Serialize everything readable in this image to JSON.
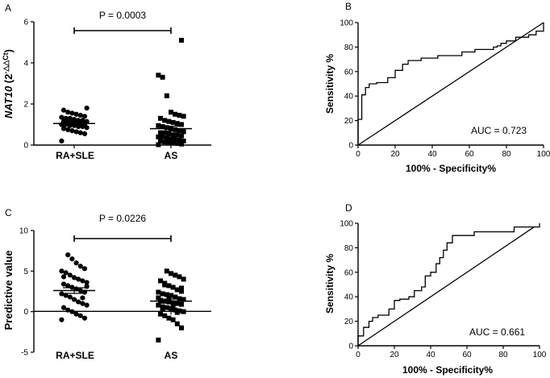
{
  "chart_data": [
    {
      "panel": "A",
      "type": "scatter",
      "ylabel_italic": "NAT10",
      "ylabel_rest": " (2",
      "ylabel_sup": "-△△Ct",
      "ylabel_close": ")",
      "categories": [
        "RA+SLE",
        "AS"
      ],
      "ylim": [
        0,
        6
      ],
      "yticks": [
        0,
        2,
        4,
        6
      ],
      "comparison_label": "P = 0.0003",
      "groups": [
        {
          "name": "RA+SLE",
          "marker": "circle",
          "mean": 1.05,
          "sem": 0.06,
          "values": [
            0.2,
            0.55,
            0.6,
            0.65,
            0.7,
            0.75,
            0.8,
            0.85,
            0.9,
            0.9,
            0.95,
            0.95,
            1.0,
            1.0,
            1.0,
            1.05,
            1.05,
            1.1,
            1.1,
            1.15,
            1.15,
            1.2,
            1.2,
            1.25,
            1.3,
            1.3,
            1.35,
            1.4,
            1.45,
            1.5,
            1.55,
            1.6,
            1.7,
            1.8
          ]
        },
        {
          "name": "AS",
          "marker": "square",
          "mean": 0.8,
          "sem": 0.12,
          "values": [
            0.02,
            0.05,
            0.08,
            0.1,
            0.12,
            0.15,
            0.18,
            0.2,
            0.25,
            0.3,
            0.3,
            0.35,
            0.4,
            0.4,
            0.45,
            0.5,
            0.5,
            0.55,
            0.6,
            0.6,
            0.65,
            0.7,
            0.75,
            0.8,
            0.85,
            0.9,
            0.95,
            1.0,
            1.05,
            1.1,
            1.15,
            1.2,
            1.3,
            1.4,
            1.45,
            1.5,
            1.6,
            2.4,
            3.3,
            3.4,
            5.1
          ]
        }
      ]
    },
    {
      "panel": "B",
      "type": "line",
      "subtype": "roc",
      "xlabel": "100% - Specificity%",
      "ylabel": "Sensitivity %",
      "xlim": [
        0,
        100
      ],
      "ylim": [
        0,
        100
      ],
      "xticks": [
        0,
        20,
        40,
        60,
        80,
        100
      ],
      "yticks": [
        0,
        20,
        40,
        60,
        80,
        100
      ],
      "annotation": "AUC = 0.723",
      "series": [
        {
          "name": "ROC",
          "x": [
            0,
            0,
            2,
            2,
            4,
            4,
            6,
            6,
            10,
            10,
            16,
            16,
            20,
            20,
            24,
            24,
            27,
            27,
            34,
            34,
            43,
            43,
            56,
            56,
            63,
            63,
            73,
            73,
            75,
            75,
            77,
            77,
            80,
            80,
            85,
            85,
            92,
            92,
            96,
            96,
            100,
            100
          ],
          "y": [
            0,
            21,
            21,
            41,
            41,
            47,
            47,
            50,
            50,
            51,
            51,
            55,
            55,
            61,
            61,
            66,
            66,
            69,
            69,
            71,
            71,
            73,
            73,
            76,
            76,
            78,
            78,
            80,
            80,
            81,
            81,
            83,
            83,
            85,
            85,
            88,
            88,
            90,
            90,
            93,
            93,
            100
          ]
        },
        {
          "name": "Reference",
          "x": [
            0,
            100
          ],
          "y": [
            0,
            100
          ]
        }
      ]
    },
    {
      "panel": "C",
      "type": "scatter",
      "ylabel": "Predictive value",
      "categories": [
        "RA+SLE",
        "AS"
      ],
      "ylim": [
        -5,
        10
      ],
      "yticks": [
        -5,
        0,
        5,
        10
      ],
      "comparison_label": "P = 0.0226",
      "groups": [
        {
          "name": "RA+SLE",
          "marker": "circle",
          "mean": 2.6,
          "sem": 0.35,
          "values": [
            -1.0,
            -0.8,
            -0.5,
            -0.3,
            0.0,
            0.2,
            0.5,
            0.8,
            1.0,
            1.2,
            1.5,
            1.8,
            2.0,
            2.2,
            2.4,
            2.6,
            2.8,
            3.0,
            3.2,
            3.4,
            3.6,
            3.8,
            4.0,
            4.2,
            4.5,
            4.8,
            5.0,
            5.3,
            5.6,
            6.0,
            6.5,
            7.0,
            4.3,
            3.1,
            1.7
          ]
        },
        {
          "name": "AS",
          "marker": "square",
          "mean": 1.3,
          "sem": 0.25,
          "values": [
            -3.5,
            -2.0,
            -1.5,
            -1.0,
            -0.8,
            -0.5,
            -0.3,
            0.0,
            0.1,
            0.2,
            0.4,
            0.5,
            0.6,
            0.8,
            0.9,
            1.0,
            1.1,
            1.2,
            1.3,
            1.4,
            1.5,
            1.6,
            1.8,
            2.0,
            2.1,
            2.2,
            2.4,
            2.5,
            2.7,
            3.0,
            3.2,
            3.5,
            3.8,
            4.0,
            4.3,
            4.5,
            4.7,
            5.0,
            0.3,
            1.7,
            2.9,
            -0.1,
            0.7,
            1.9,
            3.3
          ]
        }
      ]
    },
    {
      "panel": "D",
      "type": "line",
      "subtype": "roc",
      "xlabel": "100% - Specificity%",
      "ylabel": "Sensitivity %",
      "xlim": [
        0,
        100
      ],
      "ylim": [
        0,
        100
      ],
      "xticks": [
        0,
        20,
        40,
        60,
        80,
        100
      ],
      "yticks": [
        0,
        20,
        40,
        60,
        80,
        100
      ],
      "annotation": "AUC = 0.661",
      "series": [
        {
          "name": "ROC",
          "x": [
            0,
            0,
            3,
            3,
            6,
            6,
            8,
            8,
            11,
            11,
            17,
            17,
            20,
            20,
            23,
            23,
            28,
            28,
            31,
            31,
            35,
            35,
            37,
            37,
            40,
            40,
            43,
            43,
            45,
            45,
            47,
            47,
            49,
            49,
            52,
            52,
            64,
            64,
            86,
            86,
            100,
            100
          ],
          "y": [
            0,
            8,
            8,
            15,
            15,
            20,
            20,
            23,
            23,
            25,
            25,
            30,
            30,
            37,
            37,
            38,
            38,
            40,
            40,
            45,
            45,
            48,
            48,
            57,
            57,
            60,
            60,
            67,
            67,
            72,
            72,
            78,
            78,
            84,
            84,
            90,
            90,
            93,
            93,
            97,
            97,
            100
          ]
        },
        {
          "name": "Reference",
          "x": [
            0,
            97
          ],
          "y": [
            0,
            97
          ]
        }
      ]
    }
  ]
}
